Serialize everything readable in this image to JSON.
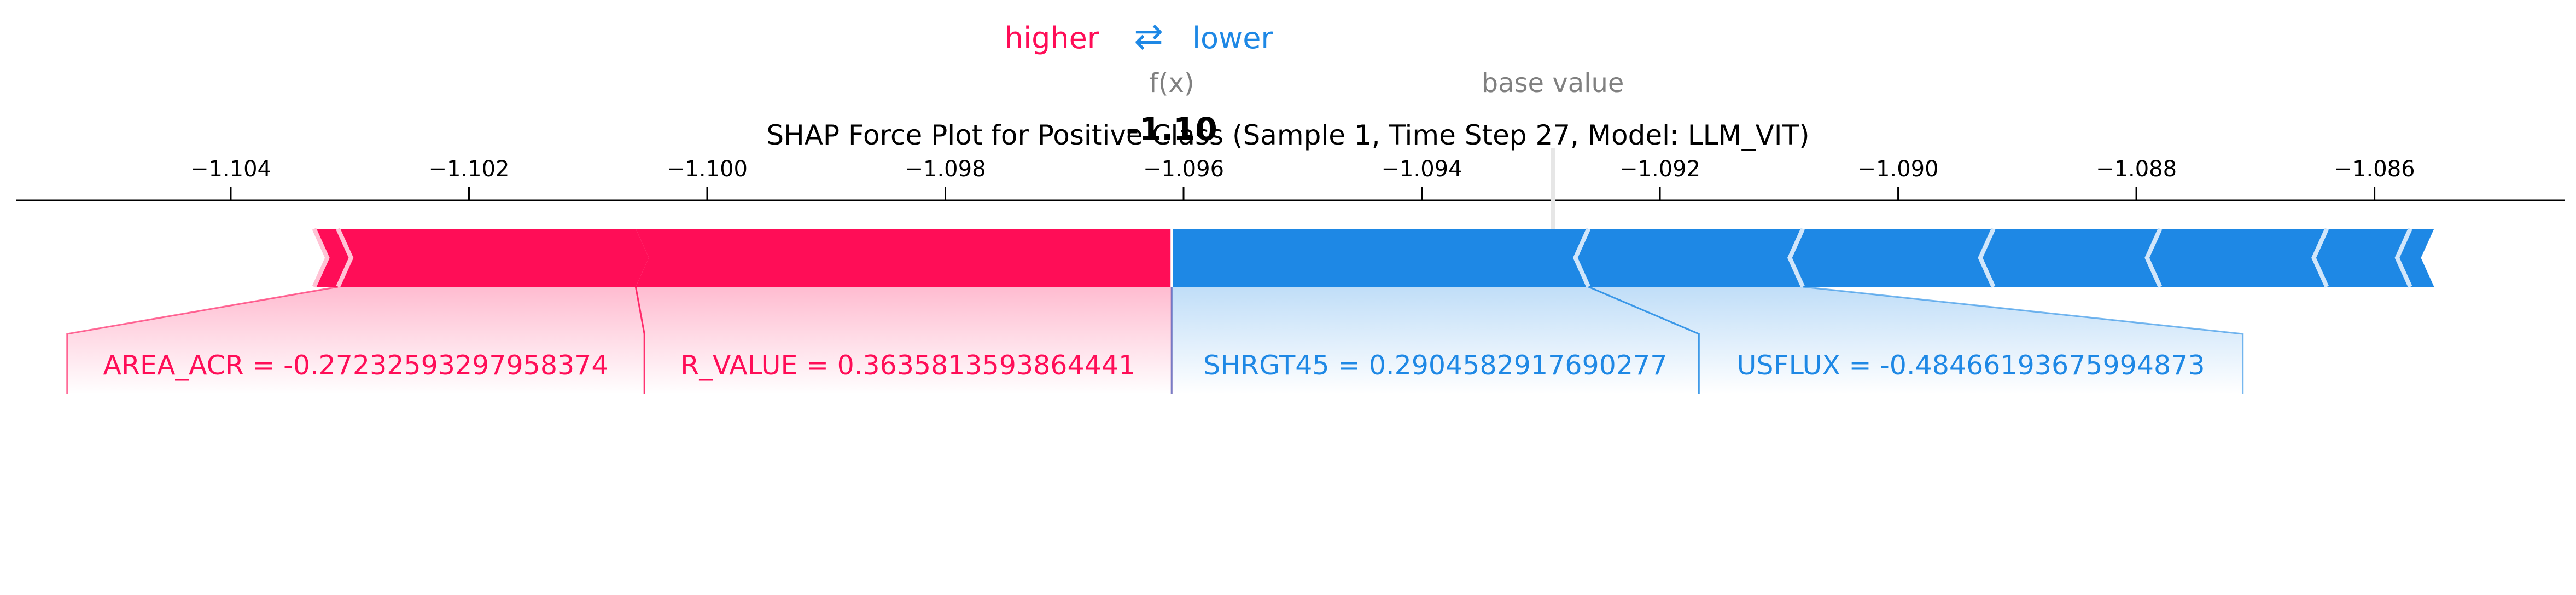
{
  "chart_data": {
    "type": "force",
    "title": "SHAP Force Plot for Positive Class (Sample 1, Time Step 27, Model: LLM_VIT)",
    "legend": {
      "higher_label": "higher",
      "arrow_glyph": "⇄",
      "lower_label": "lower"
    },
    "fx_label": "f(x)",
    "fx_value": -1.0961,
    "fx_value_text": "-1.10",
    "base_value_label": "base value",
    "base_value": -1.0929,
    "xlim": [
      -1.1058,
      -1.0844
    ],
    "ticks": [
      -1.104,
      -1.102,
      -1.1,
      -1.098,
      -1.096,
      -1.094,
      -1.092,
      -1.09,
      -1.088,
      -1.086
    ],
    "tick_labels": [
      "−1.104",
      "−1.102",
      "−1.100",
      "−1.098",
      "−1.096",
      "−1.094",
      "−1.092",
      "−1.090",
      "−1.088",
      "−1.086"
    ],
    "positive_features": [
      {
        "label": "R_VALUE = 0.3635813593864441",
        "start": -1.1006,
        "end": -1.0961
      },
      {
        "label": "AREA_ACR = -0.27232593297958374",
        "start": -1.1031,
        "end": -1.1006
      },
      {
        "label": "",
        "start": -1.1033,
        "end": -1.1031
      }
    ],
    "negative_features": [
      {
        "label": "SHRGT45 = 0.2904582917690277",
        "start": -1.0961,
        "end": -1.0926
      },
      {
        "label": "USFLUX = -0.48466193675994873",
        "start": -1.0926,
        "end": -1.0908
      },
      {
        "label": "",
        "start": -1.0908,
        "end": -1.0892
      },
      {
        "label": "",
        "start": -1.0892,
        "end": -1.0878
      },
      {
        "label": "",
        "start": -1.0878,
        "end": -1.0864
      },
      {
        "label": "",
        "start": -1.0864,
        "end": -1.0857
      },
      {
        "label": "",
        "start": -1.0857,
        "end": -1.0855
      }
    ],
    "colors": {
      "positive": "#ff0d57",
      "negative": "#1e88e5",
      "muted": "#808080",
      "text": "#000000",
      "axis": "#000000"
    }
  }
}
